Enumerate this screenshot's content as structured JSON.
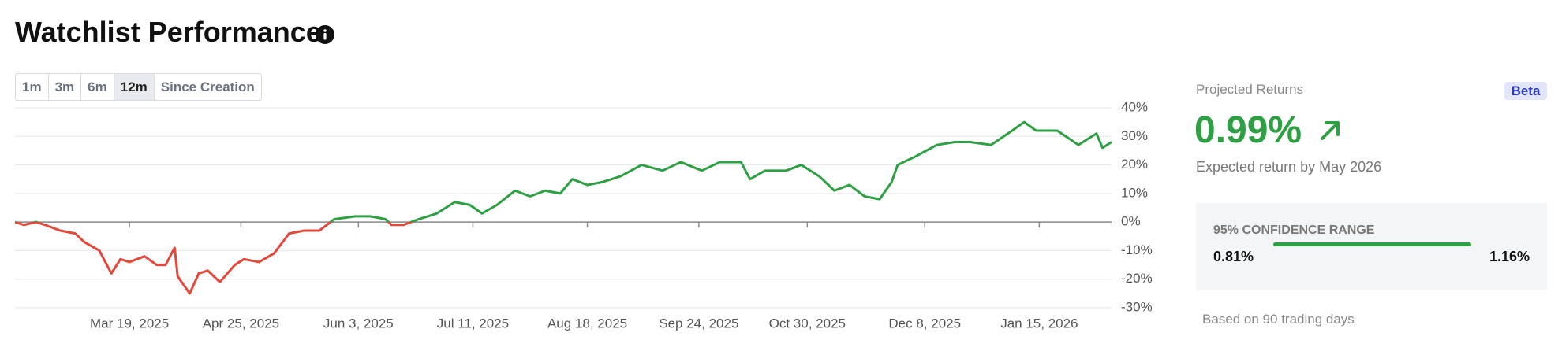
{
  "header": {
    "title": "Watchlist Performance"
  },
  "range_buttons": {
    "options": [
      "1m",
      "3m",
      "6m",
      "12m",
      "Since Creation"
    ],
    "active": 3
  },
  "chart_data": {
    "type": "line",
    "x": [
      "2025-02-09",
      "2025-02-12",
      "2025-02-16",
      "2025-02-19",
      "2025-02-24",
      "2025-03-01",
      "2025-03-04",
      "2025-03-09",
      "2025-03-13",
      "2025-03-16",
      "2025-03-19",
      "2025-03-24",
      "2025-03-28",
      "2025-03-31",
      "2025-04-03",
      "2025-04-04",
      "2025-04-08",
      "2025-04-11",
      "2025-04-14",
      "2025-04-18",
      "2025-04-23",
      "2025-04-26",
      "2025-05-01",
      "2025-05-06",
      "2025-05-11",
      "2025-05-16",
      "2025-05-21",
      "2025-05-26",
      "2025-06-02",
      "2025-06-07",
      "2025-06-12",
      "2025-06-14",
      "2025-06-18",
      "2025-06-23",
      "2025-06-29",
      "2025-07-05",
      "2025-07-10",
      "2025-07-14",
      "2025-07-19",
      "2025-07-25",
      "2025-07-30",
      "2025-08-04",
      "2025-08-09",
      "2025-08-13",
      "2025-08-18",
      "2025-08-23",
      "2025-08-29",
      "2025-09-05",
      "2025-09-12",
      "2025-09-18",
      "2025-09-25",
      "2025-10-01",
      "2025-10-08",
      "2025-10-11",
      "2025-10-16",
      "2025-10-23",
      "2025-10-28",
      "2025-11-03",
      "2025-11-08",
      "2025-11-13",
      "2025-11-18",
      "2025-11-23",
      "2025-11-27",
      "2025-11-29",
      "2025-12-05",
      "2025-12-12",
      "2025-12-18",
      "2025-12-23",
      "2025-12-30",
      "2026-01-06",
      "2026-01-10",
      "2026-01-14",
      "2026-01-21",
      "2026-01-28",
      "2026-02-03",
      "2026-02-05",
      "2026-02-08"
    ],
    "values": [
      0,
      -1,
      0,
      -1,
      -3,
      -4,
      -7,
      -10,
      -18,
      -13,
      -14,
      -12,
      -15,
      -15,
      -9,
      -19,
      -25,
      -18,
      -17,
      -21,
      -15,
      -13,
      -14,
      -11,
      -4,
      -3,
      -3,
      1,
      2,
      2,
      1,
      -1,
      -1,
      1,
      3,
      7,
      6,
      3,
      6,
      11,
      9,
      11,
      10,
      15,
      13,
      14,
      16,
      20,
      18,
      21,
      18,
      21,
      21,
      15,
      18,
      18,
      20,
      16,
      11,
      13,
      9,
      8,
      14,
      20,
      23,
      27,
      28,
      28,
      27,
      32,
      35,
      32,
      32,
      27,
      31,
      26,
      28
    ],
    "color_positive": "#2ea043",
    "color_negative": "#e5483a",
    "xlim": [
      "2025-02-09",
      "2026-02-08"
    ],
    "xticks": [
      {
        "value": "2025-03-19",
        "label": "Mar 19, 2025"
      },
      {
        "value": "2025-04-25",
        "label": "Apr 25, 2025"
      },
      {
        "value": "2025-06-03",
        "label": "Jun 3, 2025"
      },
      {
        "value": "2025-07-11",
        "label": "Jul 11, 2025"
      },
      {
        "value": "2025-08-18",
        "label": "Aug 18, 2025"
      },
      {
        "value": "2025-09-24",
        "label": "Sep 24, 2025"
      },
      {
        "value": "2025-10-30",
        "label": "Oct 30, 2025"
      },
      {
        "value": "2025-12-08",
        "label": "Dec 8, 2025"
      },
      {
        "value": "2026-01-15",
        "label": "Jan 15, 2026"
      }
    ],
    "ylim": [
      -30,
      40
    ],
    "yticks": [
      {
        "value": 40,
        "label": "40%"
      },
      {
        "value": 30,
        "label": "30%"
      },
      {
        "value": 20,
        "label": "20%"
      },
      {
        "value": 10,
        "label": "10%"
      },
      {
        "value": 0,
        "label": "0%"
      },
      {
        "value": -10,
        "label": "-10%"
      },
      {
        "value": -20,
        "label": "-20%"
      },
      {
        "value": -30,
        "label": "-30%"
      }
    ],
    "grid": true
  },
  "projected_returns": {
    "label": "Projected Returns",
    "badge": "Beta",
    "value": "0.99%",
    "subtitle": "Expected return by May 2026",
    "confidence": {
      "title": "95% CONFIDENCE RANGE",
      "low": "0.81%",
      "high": "1.16%"
    },
    "footnote": "Based on 90 trading days"
  }
}
